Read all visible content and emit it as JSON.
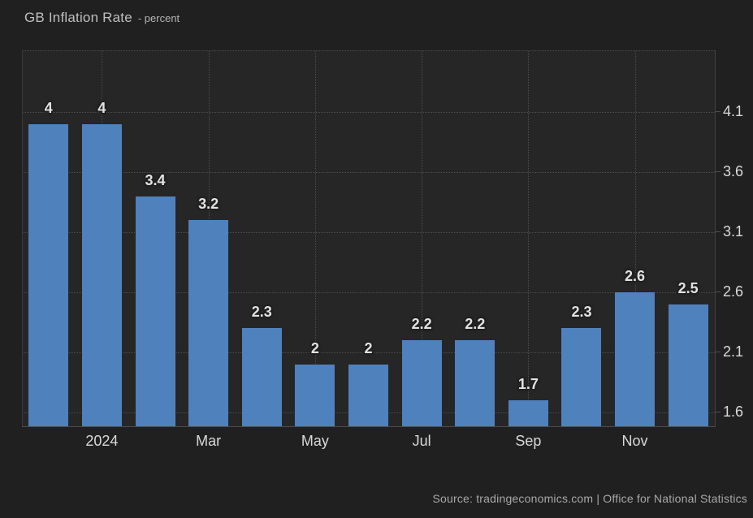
{
  "header": {
    "title": "GB Inflation Rate",
    "subtitle": "- percent"
  },
  "footer": {
    "source": "Source: tradingeconomics.com | Office for National Statistics"
  },
  "colors": {
    "background": "#202020",
    "plot_background": "#262626",
    "bar": "#4f81bd",
    "gridline": "#4c4c4c",
    "axis_line": "#414141",
    "tick_label": "#d9d9d9",
    "bar_label": "#e2e2e2",
    "title": "#bfbfbf",
    "source_text": "#a8a8a8"
  },
  "chart_data": {
    "type": "bar",
    "title": "GB Inflation Rate - percent",
    "values": [
      4,
      4,
      3.4,
      3.2,
      2.3,
      2,
      2,
      2.2,
      2.2,
      1.7,
      2.3,
      2.6,
      2.5
    ],
    "bar_labels": [
      "4",
      "4",
      "3.4",
      "3.2",
      "2.3",
      "2",
      "2",
      "2.2",
      "2.2",
      "1.7",
      "2.3",
      "2.6",
      "2.5"
    ],
    "x_ticks": [
      {
        "label": "2024",
        "bar_index": 1
      },
      {
        "label": "Mar",
        "bar_index": 3
      },
      {
        "label": "May",
        "bar_index": 5
      },
      {
        "label": "Jul",
        "bar_index": 7
      },
      {
        "label": "Sep",
        "bar_index": 9
      },
      {
        "label": "Nov",
        "bar_index": 11
      }
    ],
    "y_ticks": [
      4.1,
      3.6,
      3.1,
      2.6,
      2.1,
      1.6
    ],
    "ylim": [
      1.478,
      4.607
    ],
    "grid": "dotted",
    "legend": "none",
    "y_axis_side": "right",
    "xlabel": "",
    "ylabel": "percent"
  }
}
